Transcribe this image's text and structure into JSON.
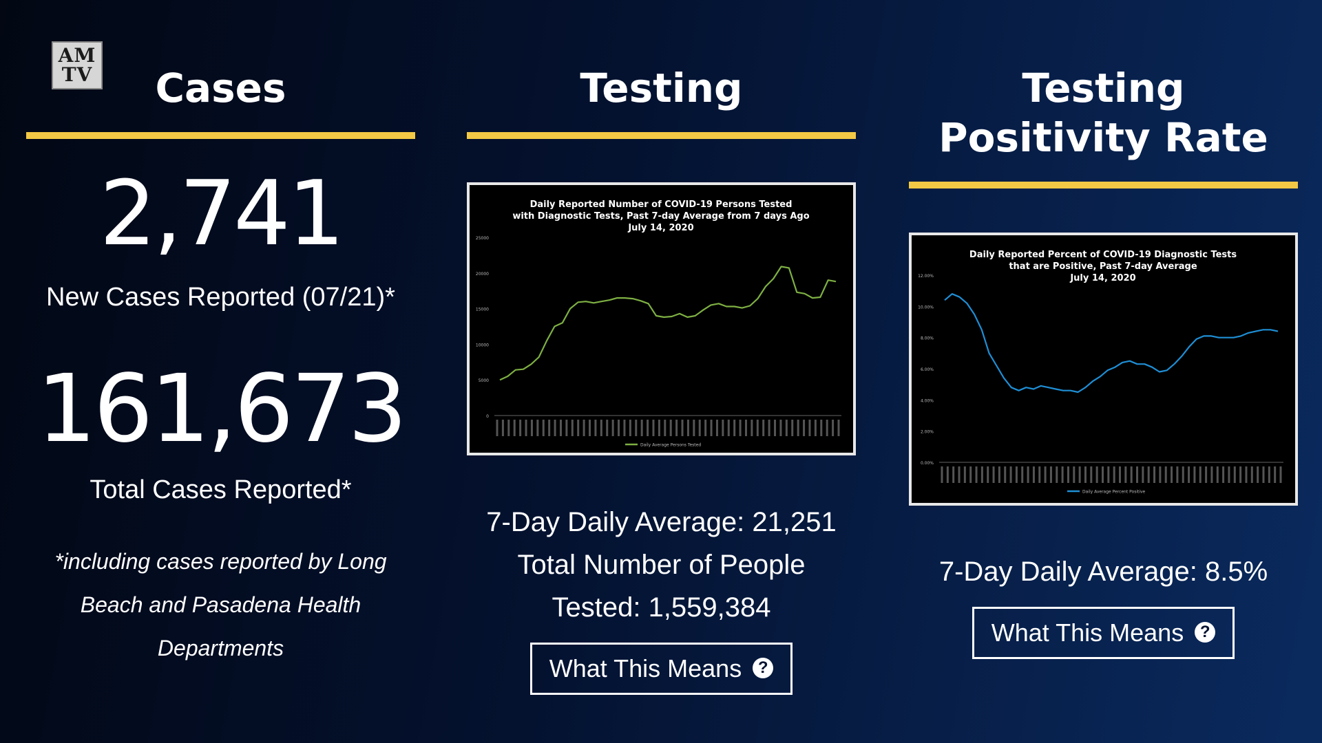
{
  "logo": {
    "line1": "AM",
    "line2": "TV"
  },
  "cases": {
    "heading": "Cases",
    "new_cases": "2,741",
    "new_cases_label": "New Cases Reported (07/21)*",
    "total_cases": "161,673",
    "total_cases_label": "Total Cases Reported*",
    "footnote": "*including cases reported by Long Beach and Pasadena Health Departments"
  },
  "testing": {
    "heading": "Testing",
    "avg_line": "7-Day Daily Average: 21,251",
    "total_line1": "Total Number of People",
    "total_line2": "Tested: 1,559,384",
    "button_label": "What This Means",
    "button_icon": "question-circle-icon"
  },
  "positivity": {
    "heading_line1": "Testing",
    "heading_line2": "Positivity Rate",
    "avg_line": "7-Day Daily Average: 8.5%",
    "button_label": "What This Means",
    "button_icon": "question-circle-icon"
  },
  "colors": {
    "accent_bar": "#f3c844",
    "testing_line": "#7eb043",
    "positivity_line": "#1f8fd6"
  },
  "chart_data": [
    {
      "type": "line",
      "title": "Daily Reported Number of COVID-19 Persons Tested with Diagnostic Tests, Past 7-day Average from 7 days Ago July 14, 2020",
      "title_lines": [
        "Daily Reported Number of COVID-19 Persons Tested",
        "with Diagnostic Tests, Past 7-day Average from 7 days Ago",
        "July 14, 2020"
      ],
      "ylim": [
        0,
        25000
      ],
      "yticks": [
        "25000",
        "20000",
        "15000",
        "10000",
        "5000",
        "0"
      ],
      "series": [
        {
          "name": "Daily Average Persons Tested",
          "color": "#7eb043",
          "values": [
            5000,
            5500,
            6400,
            6500,
            7200,
            8200,
            10500,
            12500,
            13000,
            15000,
            15900,
            16000,
            15800,
            16000,
            16200,
            16500,
            16500,
            16400,
            16100,
            15700,
            14000,
            13800,
            13900,
            14300,
            13800,
            14000,
            14800,
            15500,
            15700,
            15300,
            15300,
            15100,
            15400,
            16400,
            18100,
            19200,
            20900,
            20700,
            17300,
            17100,
            16500,
            16600,
            19000,
            18800
          ]
        }
      ]
    },
    {
      "type": "line",
      "title": "Daily Reported Percent of COVID-19 Diagnostic Tests that are Positive, Past 7-day Average July 14, 2020",
      "title_lines": [
        "Daily Reported Percent of COVID-19 Diagnostic Tests",
        "that are Positive, Past 7-day Average",
        "July 14, 2020"
      ],
      "ylim": [
        0,
        12
      ],
      "yticks": [
        "12.00%",
        "10.00%",
        "8.00%",
        "6.00%",
        "4.00%",
        "2.00%",
        "0.00%"
      ],
      "series": [
        {
          "name": "Daily Average Percent Positive",
          "color": "#1f8fd6",
          "values": [
            10.4,
            10.8,
            10.6,
            10.2,
            9.5,
            8.5,
            7.0,
            6.2,
            5.4,
            4.8,
            4.6,
            4.8,
            4.7,
            4.9,
            4.8,
            4.7,
            4.6,
            4.6,
            4.5,
            4.8,
            5.2,
            5.5,
            5.9,
            6.1,
            6.4,
            6.5,
            6.3,
            6.3,
            6.1,
            5.8,
            5.9,
            6.3,
            6.8,
            7.4,
            7.9,
            8.1,
            8.1,
            8.0,
            8.0,
            8.0,
            8.1,
            8.3,
            8.4,
            8.5,
            8.5,
            8.4
          ]
        }
      ]
    }
  ]
}
